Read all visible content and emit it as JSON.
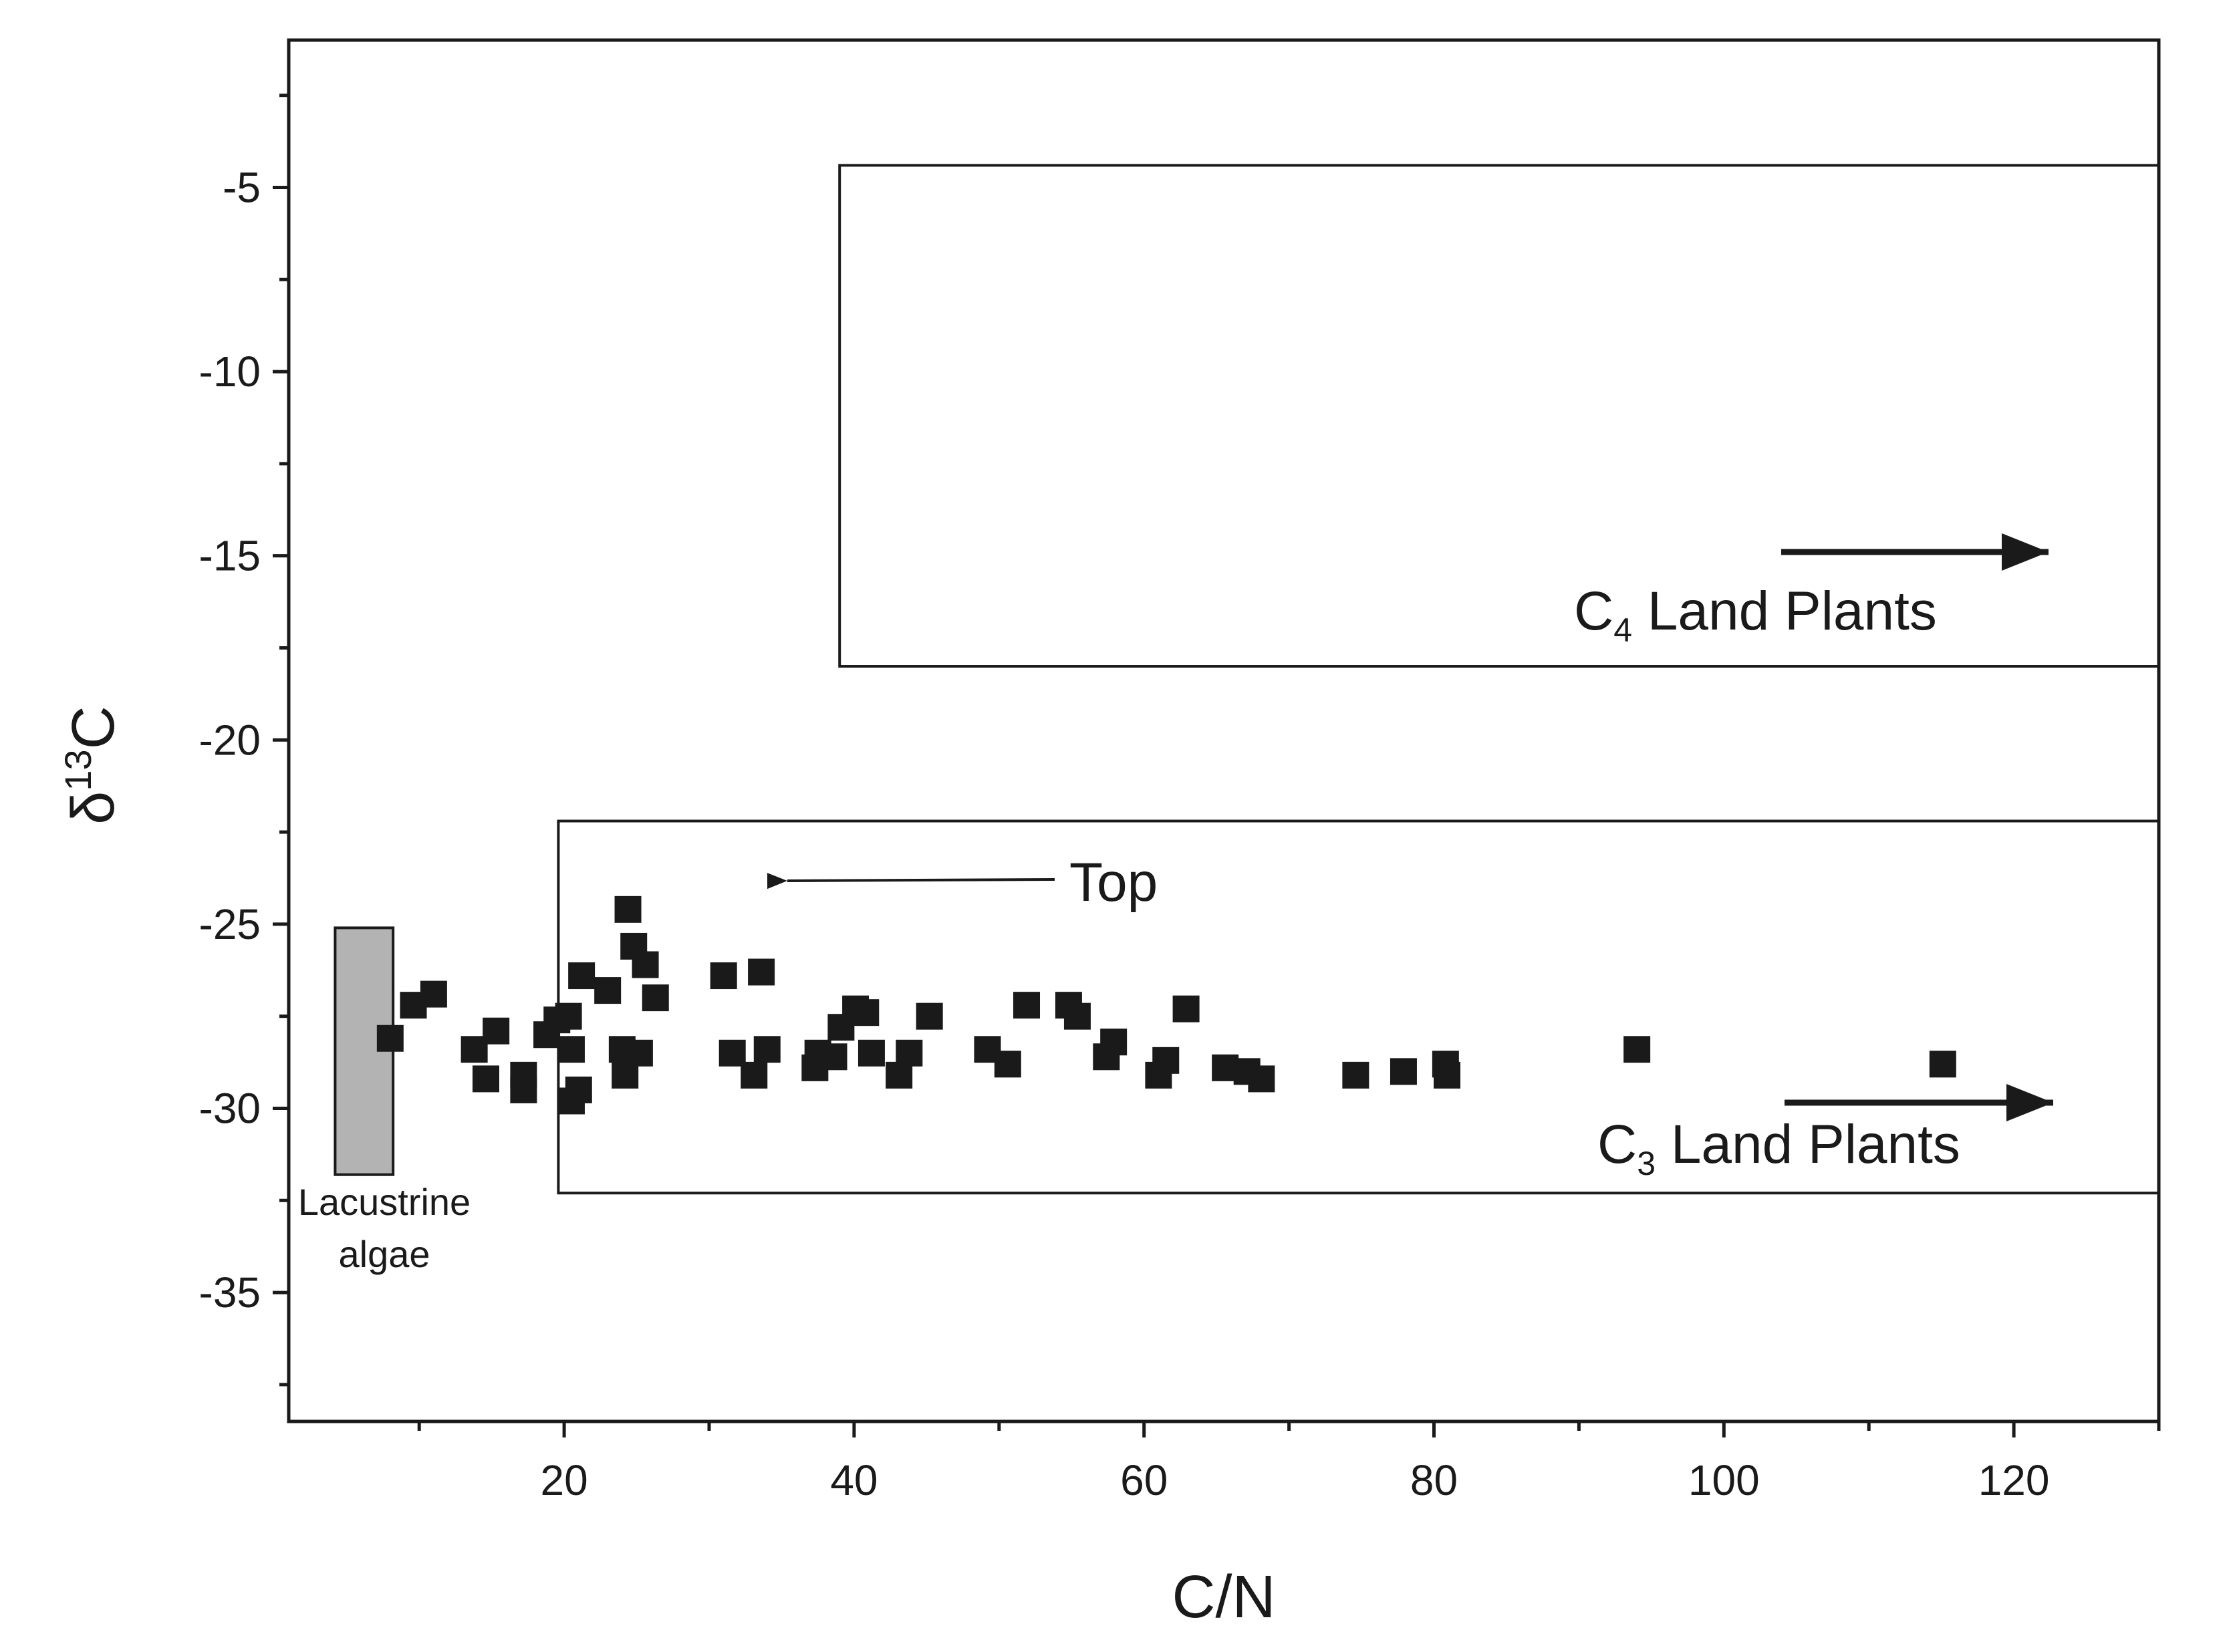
{
  "chart_data": {
    "type": "scatter",
    "xlabel": "C/N",
    "ylabel": {
      "base": "δ",
      "sup": "13",
      "main": "C"
    },
    "xlim": [
      1,
      130
    ],
    "ylim": [
      -38.5,
      -1
    ],
    "x_ticks": [
      20,
      40,
      60,
      80,
      100,
      120
    ],
    "x_tick_labels": [
      "20",
      "40",
      "60",
      "80",
      "100",
      "120"
    ],
    "y_ticks": [
      -5,
      -10,
      -15,
      -20,
      -25,
      -30,
      -35
    ],
    "y_tick_labels": [
      "-5",
      "-10",
      "-15",
      "-20",
      "-25",
      "-30",
      "-35"
    ],
    "grid": false,
    "colors": {
      "marker": "#1a1a1a",
      "algae_fill": "#b3b3b3",
      "outline": "#1a1a1a"
    },
    "regions": [
      {
        "label_main": "C",
        "label_sub": "4",
        "label_rest": " Land Plants",
        "x": [
          39,
          130
        ],
        "y": [
          -18,
          -4.4
        ]
      },
      {
        "label_main": "C",
        "label_sub": "3",
        "label_rest": " Land Plants",
        "x": [
          19.6,
          130
        ],
        "y": [
          -32.3,
          -22.2
        ]
      }
    ],
    "algae": {
      "line1": "Lacustrine",
      "line2": "algae",
      "x": [
        4.2,
        8.2
      ],
      "y": [
        -31.8,
        -25.1
      ]
    },
    "annotation": {
      "text": "Top",
      "arrow_from": [
        32.5,
        -24
      ],
      "arrow_to": [
        35,
        -24
      ]
    },
    "series": [
      {
        "points": [
          [
            8,
            -28.1
          ],
          [
            9.6,
            -27.2
          ],
          [
            11,
            -26.9
          ],
          [
            13.8,
            -28.4
          ],
          [
            14.6,
            -29.2
          ],
          [
            15.3,
            -27.9
          ],
          [
            17.2,
            -29.1
          ],
          [
            17.2,
            -29.5
          ],
          [
            18.8,
            -28
          ],
          [
            19.5,
            -27.6
          ],
          [
            20.3,
            -27.5
          ],
          [
            20.5,
            -28.4
          ],
          [
            20.5,
            -29.8
          ],
          [
            21,
            -29.5
          ],
          [
            21.2,
            -26.4
          ],
          [
            23,
            -26.8
          ],
          [
            24,
            -28.4
          ],
          [
            24.2,
            -29.1
          ],
          [
            24.4,
            -24.6
          ],
          [
            24.8,
            -25.6
          ],
          [
            25.2,
            -28.5
          ],
          [
            25.6,
            -26.1
          ],
          [
            26.3,
            -27
          ],
          [
            31,
            -26.4
          ],
          [
            31.6,
            -28.5
          ],
          [
            33.1,
            -29.1
          ],
          [
            33.6,
            -26.3
          ],
          [
            34,
            -28.4
          ],
          [
            37.3,
            -28.9
          ],
          [
            37.5,
            -28.5
          ],
          [
            38.6,
            -28.6
          ],
          [
            39.1,
            -27.8
          ],
          [
            40.1,
            -27.3
          ],
          [
            40.8,
            -27.4
          ],
          [
            41.2,
            -28.5
          ],
          [
            43.1,
            -29.1
          ],
          [
            43.8,
            -28.5
          ],
          [
            45.2,
            -27.5
          ],
          [
            49.2,
            -28.4
          ],
          [
            50.6,
            -28.8
          ],
          [
            51.9,
            -27.2
          ],
          [
            54.8,
            -27.2
          ],
          [
            55.4,
            -27.5
          ],
          [
            57.4,
            -28.6
          ],
          [
            57.9,
            -28.2
          ],
          [
            61,
            -29.1
          ],
          [
            61.5,
            -28.7
          ],
          [
            62.9,
            -27.3
          ],
          [
            65.6,
            -28.9
          ],
          [
            67.1,
            -29
          ],
          [
            68.1,
            -29.2
          ],
          [
            74.6,
            -29.1
          ],
          [
            77.9,
            -29
          ],
          [
            80.8,
            -28.8
          ],
          [
            80.9,
            -29.1
          ],
          [
            94,
            -28.4
          ],
          [
            115.1,
            -28.8
          ]
        ]
      }
    ]
  }
}
